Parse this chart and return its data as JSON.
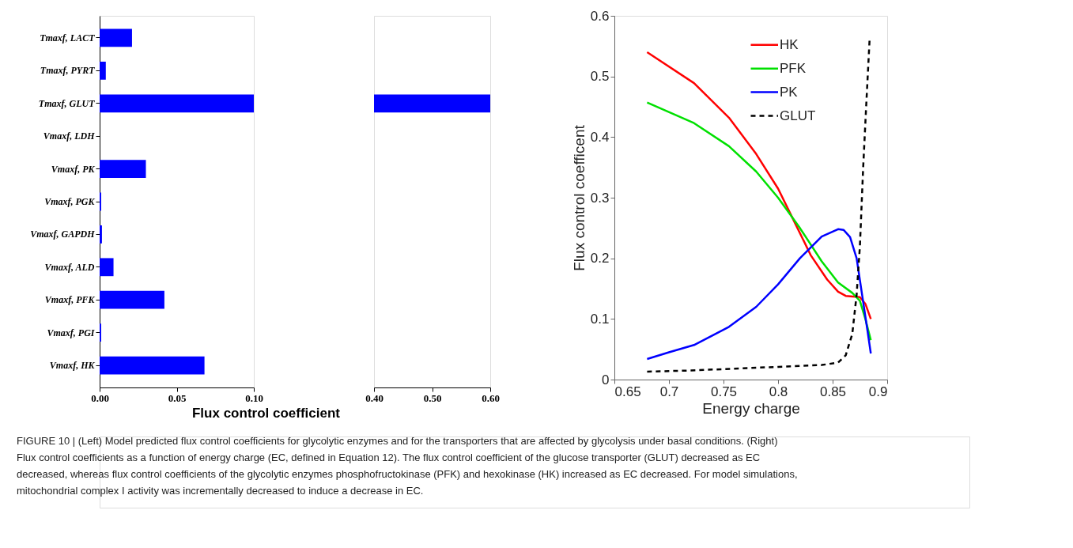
{
  "chart_data": [
    {
      "type": "bar",
      "orientation": "horizontal",
      "xlabel": "Flux control coefficient",
      "categories": [
        "Tmaxf, LACT",
        "Tmaxf, PYRT",
        "Tmaxf, GLUT",
        "Vmaxf, LDH",
        "Vmaxf, PK",
        "Vmaxf, PGK",
        "Vmaxf, GAPDH",
        "Vmaxf, ALD",
        "Vmaxf, PFK",
        "Vmaxf, PGI",
        "Vmaxf, HK"
      ],
      "values": [
        0.021,
        0.004,
        0.1,
        0,
        0.03,
        0.001,
        0.0015,
        0.009,
        0.042,
        0.001,
        0.068
      ],
      "color": "#0000ff",
      "xlim": [
        0,
        0.1
      ],
      "xticks": [
        {
          "value": 0,
          "label": "0.00"
        },
        {
          "value": 0.05,
          "label": "0.05"
        },
        {
          "value": 0.1,
          "label": "0.10"
        }
      ],
      "grid": false,
      "annotations": [
        "FIGURE 10 | (Left) Model predicted flux control coefficients for glycolytic enzymes and for the transporters that are affected by glycolysis under basal conditions. (Right) Flux control coefficients as a function of energy charge (EC, defined in Equation 12). The flux control coefficient of the glucose transporter (GLUT) decreased as EC decreased, whereas flux control coefficients of the glycolytic enzymes phosphofructokinase (PFK) and hexokinase (HK) increased as EC decreased. For model simulations, mitochondrial complex I activity was incrementally decreased to induce a decrease in EC."
      ]
    },
    {
      "type": "bar",
      "orientation": "horizontal",
      "tick_labels": "x",
      "values": [
        null,
        null,
        0.2,
        null,
        null,
        null,
        null,
        null,
        null,
        null,
        null
      ],
      "base": [
        null,
        null,
        0.4,
        null,
        null,
        null,
        null,
        null,
        null,
        null,
        null
      ],
      "color": "#0000ff",
      "xlim": [
        0.4,
        0.6
      ],
      "xticks": [
        {
          "value": 0.4,
          "label": "0.40"
        },
        {
          "value": 0.5,
          "label": "0.50"
        },
        {
          "value": 0.6,
          "label": "0.60"
        }
      ],
      "grid": false
    },
    {
      "type": "line",
      "xlabel": "Energy charge",
      "ylabel": "Flux control coefficent",
      "legend": "top",
      "grid": false,
      "line_style": "solid",
      "xlim": [
        0.65,
        0.9
      ],
      "xticks": [
        0.65,
        0.7,
        0.75,
        0.8,
        0.85,
        0.9
      ],
      "ylim": [
        0,
        0.6
      ],
      "yticks": [
        0,
        0.1,
        0.2,
        0.3,
        0.4,
        0.5,
        0.6
      ],
      "series": [
        {
          "name": "HK",
          "color": "#ff0000",
          "x": [
            0.68,
            0.723,
            0.755,
            0.78,
            0.8,
            0.815,
            0.83,
            0.845,
            0.855,
            0.862,
            0.875,
            0.88,
            0.885
          ],
          "values": [
            0.54,
            0.489,
            0.432,
            0.372,
            0.315,
            0.26,
            0.205,
            0.165,
            0.145,
            0.138,
            0.136,
            0.125,
            0.1
          ]
        },
        {
          "name": "PFK",
          "color": "#00e000",
          "x": [
            0.68,
            0.723,
            0.755,
            0.78,
            0.8,
            0.82,
            0.84,
            0.855,
            0.868,
            0.875,
            0.88,
            0.885
          ],
          "values": [
            0.457,
            0.423,
            0.385,
            0.343,
            0.3,
            0.25,
            0.195,
            0.16,
            0.143,
            0.13,
            0.1,
            0.065
          ]
        },
        {
          "name": "PK",
          "color": "#0000ff",
          "x": [
            0.68,
            0.7,
            0.723,
            0.755,
            0.78,
            0.8,
            0.82,
            0.84,
            0.855,
            0.86,
            0.866,
            0.872,
            0.877,
            0.882,
            0.885
          ],
          "values": [
            0.034,
            0.045,
            0.057,
            0.087,
            0.12,
            0.157,
            0.2,
            0.236,
            0.248,
            0.247,
            0.235,
            0.2,
            0.14,
            0.08,
            0.043
          ]
        },
        {
          "name": "GLUT",
          "color": "#000000",
          "line_style": "dashed",
          "x": [
            0.68,
            0.72,
            0.76,
            0.8,
            0.84,
            0.855,
            0.862,
            0.868,
            0.872,
            0.875,
            0.878,
            0.881,
            0.884
          ],
          "values": [
            0.013,
            0.015,
            0.018,
            0.021,
            0.024,
            0.028,
            0.04,
            0.075,
            0.14,
            0.22,
            0.35,
            0.46,
            0.565
          ]
        }
      ]
    }
  ]
}
